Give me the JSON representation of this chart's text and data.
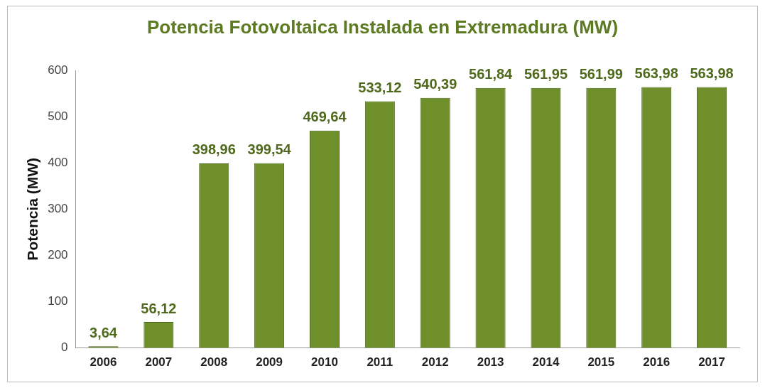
{
  "chart_data": {
    "type": "bar",
    "title": "Potencia Fotovoltaica Instalada en Extremadura (MW)",
    "ylabel": "Potencia (MW)",
    "categories": [
      "2006",
      "2007",
      "2008",
      "2009",
      "2010",
      "2011",
      "2012",
      "2013",
      "2014",
      "2015",
      "2016",
      "2017"
    ],
    "values": [
      3.64,
      56.12,
      398.96,
      399.54,
      469.64,
      533.12,
      540.39,
      561.84,
      561.95,
      561.99,
      563.98,
      563.98
    ],
    "value_labels": [
      "3,64",
      "56,12",
      "398,96",
      "399,54",
      "469,64",
      "533,12",
      "540,39",
      "561,84",
      "561,95",
      "561,99",
      "563,98",
      "563,98"
    ],
    "color": "#6e8f2a",
    "ylim": [
      0,
      600
    ],
    "yticks": [
      0,
      100,
      200,
      300,
      400,
      500,
      600
    ],
    "grid": false,
    "legend": false
  }
}
